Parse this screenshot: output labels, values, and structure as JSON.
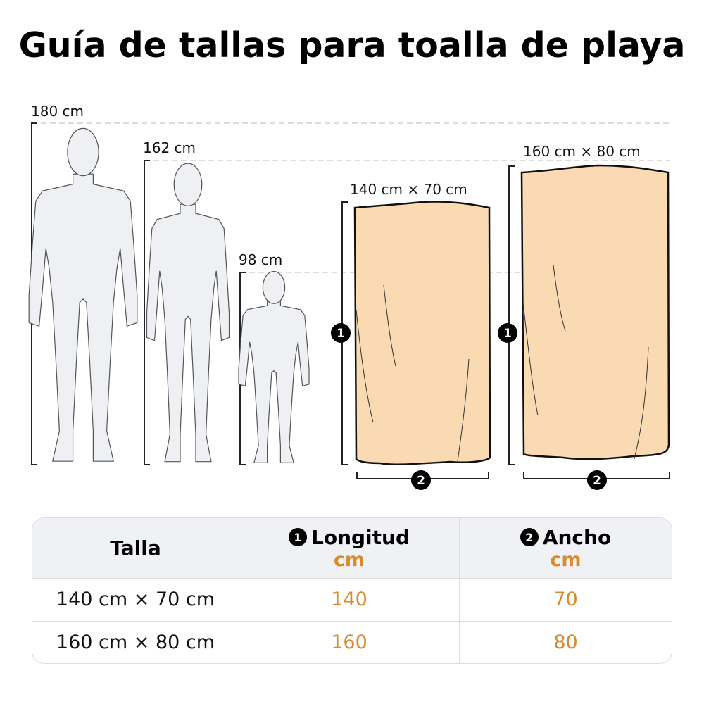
{
  "title": "Guía de tallas para toalla de playa",
  "figures": {
    "people": [
      {
        "label": "180 cm",
        "height_cm": 180
      },
      {
        "label": "162 cm",
        "height_cm": 162
      },
      {
        "label": "98 cm",
        "height_cm": 98
      }
    ],
    "towels": [
      {
        "label": "140 cm × 70 cm",
        "length_badge": "1",
        "width_badge": "2"
      },
      {
        "label": "160 cm × 80 cm",
        "length_badge": "1",
        "width_badge": "2"
      }
    ],
    "colors": {
      "towel_fill": "#f9dab3",
      "silhouette_fill": "#eef0f3",
      "accent": "#d98a2b"
    }
  },
  "table": {
    "headers": [
      {
        "label": "Talla"
      },
      {
        "badge": "1",
        "label": "Longitud",
        "unit": "cm"
      },
      {
        "badge": "2",
        "label": "Ancho",
        "unit": "cm"
      }
    ],
    "rows": [
      {
        "size": "140 cm × 70 cm",
        "length": "140",
        "width": "70"
      },
      {
        "size": "160 cm × 80 cm",
        "length": "160",
        "width": "80"
      }
    ]
  }
}
